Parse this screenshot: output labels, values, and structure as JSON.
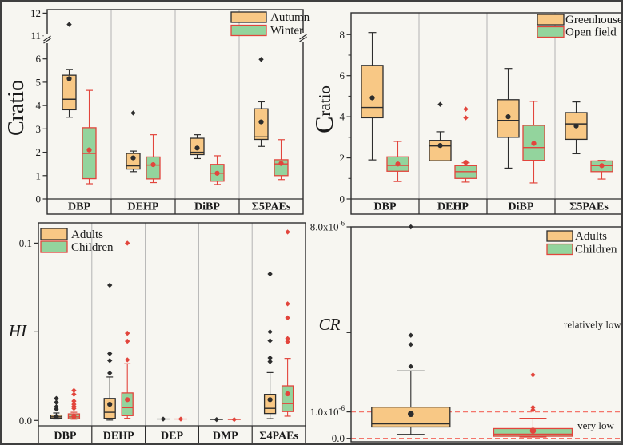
{
  "figure_title": "",
  "colors": {
    "orange_fill": "#F8C885",
    "green_fill": "#93D49D",
    "red": "#E2453C",
    "black": "#2D2D2D",
    "separator": "#B3B3B3",
    "dashed_ref": "#F4756B",
    "background": "#F7F6F1",
    "frame": "#2D2D2D",
    "text": "#1A1A1A"
  },
  "chart_data": [
    {
      "id": "cratio_season",
      "type": "box",
      "ylabel": "Cratio",
      "ylabel_style": "plain",
      "legend": [
        {
          "label": "Autumn",
          "style": "orange"
        },
        {
          "label": "Winter",
          "style": "green"
        }
      ],
      "categories": [
        "DBP",
        "DEHP",
        "DiBP",
        "Σ5PAEs"
      ],
      "yticks": [
        {
          "v": 0,
          "label": "0"
        },
        {
          "v": 1,
          "label": "1"
        },
        {
          "v": 2,
          "label": "2"
        },
        {
          "v": 3,
          "label": "3"
        },
        {
          "v": 4,
          "label": "4"
        },
        {
          "v": 5,
          "label": "5"
        },
        {
          "v": 6,
          "label": "6"
        },
        {
          "v": 11,
          "label": "11"
        },
        {
          "v": 12,
          "label": "12"
        }
      ],
      "minor_ticks": [],
      "axis_break": true,
      "scale_segments": [
        {
          "v0": 0,
          "v1": 6,
          "f0": 0,
          "f1": 0.7397
        },
        {
          "v0": 11,
          "v1": 12,
          "f0": 0.862,
          "f1": 0.9815
        }
      ],
      "groups": [
        {
          "category": "DBP",
          "boxes": [
            {
              "style": "orange",
              "series": "Autumn",
              "low": 3.5,
              "q1": 3.82,
              "median": 4.27,
              "q3": 5.3,
              "high": 5.55,
              "mean": 5.15,
              "outliers": [
                11.5
              ]
            },
            {
              "style": "green",
              "series": "Winter",
              "low": 0.65,
              "q1": 0.87,
              "median": 1.95,
              "q3": 3.05,
              "high": 4.65,
              "mean": 2.1,
              "outliers": []
            }
          ]
        },
        {
          "category": "DEHP",
          "boxes": [
            {
              "style": "orange",
              "series": "Autumn",
              "low": 1.17,
              "q1": 1.28,
              "median": 1.42,
              "q3": 1.95,
              "high": 2.05,
              "mean": 1.76,
              "outliers": [
                3.68
              ]
            },
            {
              "style": "green",
              "series": "Winter",
              "low": 0.7,
              "q1": 0.86,
              "median": 1.45,
              "q3": 1.8,
              "high": 2.75,
              "mean": 1.47,
              "outliers": []
            }
          ]
        },
        {
          "category": "DiBP",
          "boxes": [
            {
              "style": "orange",
              "series": "Autumn",
              "low": 1.73,
              "q1": 1.9,
              "median": 2.0,
              "q3": 2.6,
              "high": 2.75,
              "mean": 2.18,
              "outliers": []
            },
            {
              "style": "green",
              "series": "Winter",
              "low": 0.62,
              "q1": 0.76,
              "median": 1.1,
              "q3": 1.48,
              "high": 1.85,
              "mean": 1.1,
              "outliers": []
            }
          ]
        },
        {
          "category": "Σ5PAEs",
          "boxes": [
            {
              "style": "orange",
              "series": "Autumn",
              "low": 2.25,
              "q1": 2.55,
              "median": 2.66,
              "q3": 3.86,
              "high": 4.16,
              "mean": 3.3,
              "outliers": [
                5.98
              ]
            },
            {
              "style": "green",
              "series": "Winter",
              "low": 0.83,
              "q1": 1.0,
              "median": 1.5,
              "q3": 1.68,
              "high": 2.54,
              "mean": 1.52,
              "outliers": []
            }
          ]
        }
      ]
    },
    {
      "id": "cratio_site",
      "type": "box",
      "ylabel": "Cratio",
      "ylabel_style": "bigC",
      "legend": [
        {
          "label": "Greenhouse",
          "style": "orange"
        },
        {
          "label": "Open field",
          "style": "green"
        }
      ],
      "categories": [
        "DBP",
        "DEHP",
        "DiBP",
        "Σ5PAEs"
      ],
      "yticks": [
        {
          "v": 0,
          "label": "0"
        },
        {
          "v": 2,
          "label": "2"
        },
        {
          "v": 4,
          "label": "4"
        },
        {
          "v": 6,
          "label": "6"
        },
        {
          "v": 8,
          "label": "8"
        }
      ],
      "minor_ticks": [
        1,
        3,
        5,
        7
      ],
      "axis_break": false,
      "scale_segments": [
        {
          "v0": 0,
          "v1": 9.06,
          "f0": 0,
          "f1": 1
        }
      ],
      "groups": [
        {
          "category": "DBP",
          "boxes": [
            {
              "style": "orange",
              "series": "Greenhouse",
              "low": 1.9,
              "q1": 3.95,
              "median": 4.45,
              "q3": 6.5,
              "high": 8.1,
              "mean": 4.92,
              "outliers": []
            },
            {
              "style": "green",
              "series": "Open field",
              "low": 0.85,
              "q1": 1.35,
              "median": 1.63,
              "q3": 2.05,
              "high": 2.8,
              "mean": 1.7,
              "outliers": []
            }
          ]
        },
        {
          "category": "DEHP",
          "boxes": [
            {
              "style": "orange",
              "series": "Greenhouse",
              "low": 1.86,
              "q1": 1.86,
              "median": 2.58,
              "q3": 2.85,
              "high": 3.27,
              "mean": 2.6,
              "outliers": [
                4.6
              ]
            },
            {
              "style": "green",
              "series": "Open field",
              "low": 0.82,
              "q1": 1.0,
              "median": 1.33,
              "q3": 1.62,
              "high": 1.76,
              "mean": 1.78,
              "outliers": [
                3.95,
                4.37
              ]
            }
          ]
        },
        {
          "category": "DiBP",
          "boxes": [
            {
              "style": "orange",
              "series": "Greenhouse",
              "low": 1.5,
              "q1": 3.0,
              "median": 3.82,
              "q3": 4.83,
              "high": 6.35,
              "mean": 4.0,
              "outliers": []
            },
            {
              "style": "green",
              "series": "Open field",
              "low": 0.78,
              "q1": 1.88,
              "median": 2.5,
              "q3": 3.58,
              "high": 4.75,
              "mean": 2.7,
              "outliers": []
            }
          ]
        },
        {
          "category": "Σ5PAEs",
          "boxes": [
            {
              "style": "orange",
              "series": "Greenhouse",
              "low": 2.2,
              "q1": 2.9,
              "median": 3.65,
              "q3": 4.2,
              "high": 4.72,
              "mean": 3.55,
              "outliers": []
            },
            {
              "style": "green",
              "series": "Open field",
              "low": 0.97,
              "q1": 1.33,
              "median": 1.62,
              "q3": 1.85,
              "high": 1.88,
              "mean": 1.62,
              "outliers": []
            }
          ]
        }
      ]
    },
    {
      "id": "hi",
      "type": "box",
      "ylabel": "HI",
      "ylabel_style": "italic",
      "legend": [
        {
          "label": "Adults",
          "style": "orange"
        },
        {
          "label": "Children",
          "style": "green"
        }
      ],
      "categories": [
        "DBP",
        "DEHP",
        "DEP",
        "DMP",
        "Σ4PAEs"
      ],
      "yticks": [
        {
          "v": 0,
          "label": "0.0"
        },
        {
          "v": 0.05,
          "label": ""
        },
        {
          "v": 0.1,
          "label": "0.1"
        }
      ],
      "minor_ticks": [],
      "axis_break": false,
      "scale_segments": [
        {
          "v0": 0,
          "v1": 0.1,
          "f0": 0.0264,
          "f1": 0.9
        }
      ],
      "groups": [
        {
          "category": "DBP",
          "boxes": [
            {
              "style": "orange",
              "series": "Adults",
              "low": 0.0008,
              "q1": 0.0012,
              "median": 0.002,
              "q3": 0.003,
              "high": 0.0042,
              "mean": 0.0021,
              "outliers": [
                0.0064,
                0.0077,
                0.0102,
                0.0124
              ]
            },
            {
              "style": "green",
              "series": "Children",
              "low": 0.0007,
              "q1": 0.001,
              "median": 0.002,
              "q3": 0.0037,
              "high": 0.0046,
              "mean": 0.0023,
              "outliers": [
                0.0068,
                0.0079,
                0.0091,
                0.0109,
                0.0147,
                0.0169
              ]
            }
          ]
        },
        {
          "category": "DEHP",
          "boxes": [
            {
              "style": "orange",
              "series": "Adults",
              "low": 0.0002,
              "q1": 0.0012,
              "median": 0.0046,
              "q3": 0.0124,
              "high": 0.0245,
              "mean": 0.0091,
              "outliers": [
                0.0267,
                0.0338,
                0.0377,
                0.0763
              ]
            },
            {
              "style": "green",
              "series": "Children",
              "low": 0.0012,
              "q1": 0.0027,
              "median": 0.0072,
              "q3": 0.0155,
              "high": 0.032,
              "mean": 0.0117,
              "outliers": [
                0.0342,
                0.0447,
                0.0492,
                0.1
              ]
            }
          ]
        },
        {
          "category": "DEP",
          "boxes": [
            {
              "style": "orange",
              "series": "Adults",
              "marker_only": true,
              "median": 0.0008,
              "mean": 0.0008,
              "outliers": []
            },
            {
              "style": "green",
              "series": "Children",
              "marker_only": true,
              "median": 0.0008,
              "mean": 0.0008,
              "outliers": []
            }
          ]
        },
        {
          "category": "DMP",
          "boxes": [
            {
              "style": "orange",
              "series": "Adults",
              "marker_only": true,
              "median": 0.0005,
              "mean": 0.0005,
              "outliers": []
            },
            {
              "style": "green",
              "series": "Children",
              "marker_only": true,
              "median": 0.0005,
              "mean": 0.0005,
              "outliers": []
            }
          ]
        },
        {
          "category": "Σ4PAEs",
          "boxes": [
            {
              "style": "orange",
              "series": "Adults",
              "low": 0.001,
              "q1": 0.0039,
              "median": 0.0068,
              "q3": 0.0147,
              "high": 0.027,
              "mean": 0.0117,
              "outliers": [
                0.0332,
                0.0353,
                0.045,
                0.05,
                0.0826
              ]
            },
            {
              "style": "green",
              "series": "Children",
              "low": 0.0024,
              "q1": 0.005,
              "median": 0.0095,
              "q3": 0.0195,
              "high": 0.035,
              "mean": 0.015,
              "outliers": [
                0.0444,
                0.0462,
                0.0579,
                0.0658,
                0.1063
              ]
            }
          ]
        }
      ]
    },
    {
      "id": "cr",
      "type": "box",
      "ylabel": "CR",
      "ylabel_style": "italic",
      "y_unit_note": "values in 1e-6",
      "legend": [
        {
          "label": "Adults",
          "style": "orange"
        },
        {
          "label": "Children",
          "style": "green"
        }
      ],
      "categories": [],
      "yticks": [
        {
          "v": 0,
          "label": "0.0"
        },
        {
          "v": 1,
          "label": "1.0x10^-6"
        },
        {
          "v": 4,
          "label": ""
        },
        {
          "v": 8,
          "label": "8.0x10^-6"
        }
      ],
      "minor_ticks": [],
      "axis_break": false,
      "ref_lines": [
        0,
        1
      ],
      "annotations": [
        {
          "text": "relatively low",
          "v": 4.3,
          "fx": 0.888
        },
        {
          "text": "very low",
          "v": 0.47,
          "fx": 0.9
        }
      ],
      "scale_segments": [
        {
          "v0": 0,
          "v1": 8,
          "f0": 0.016,
          "f1": 1
        }
      ],
      "groups": [
        {
          "category": "Adults",
          "x_frac": 0.22,
          "boxes": [
            {
              "style": "orange",
              "series": "Adults",
              "low": 0.15,
              "q1": 0.43,
              "median": 0.55,
              "q3": 1.18,
              "high": 2.55,
              "mean": 0.92,
              "outliers": [
                2.72,
                3.55,
                3.9,
                8.0
              ]
            }
          ]
        },
        {
          "category": "Children",
          "x_frac": 0.669,
          "boxes": [
            {
              "style": "green",
              "series": "Children",
              "low": 0.05,
              "q1": 0.08,
              "median": 0.16,
              "q3": 0.37,
              "high": 0.76,
              "mean": 0.29,
              "outliers": [
                1.07,
                1.17,
                2.4
              ]
            }
          ]
        }
      ]
    }
  ]
}
